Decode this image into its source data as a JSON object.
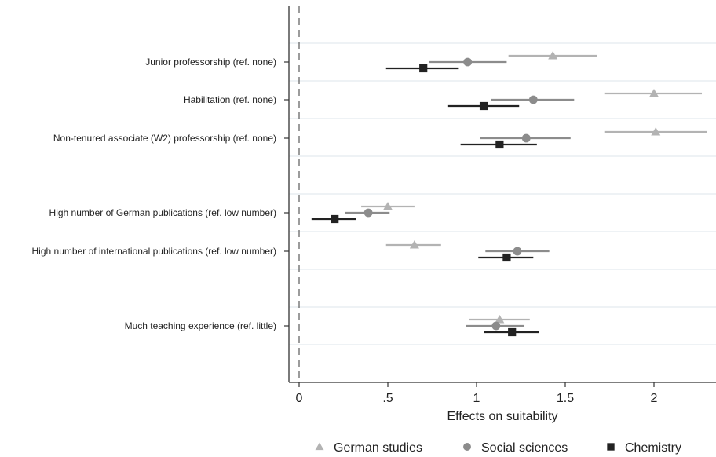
{
  "chart_data": {
    "type": "scatter",
    "title": "",
    "xlabel": "Effects on suitability",
    "ylabel": "",
    "xlim": [
      -0.03,
      2.3
    ],
    "xticks": [
      {
        "value": 0,
        "label": "0"
      },
      {
        "value": 0.5,
        "label": ".5"
      },
      {
        "value": 1,
        "label": "1"
      },
      {
        "value": 1.5,
        "label": "1.5"
      },
      {
        "value": 2,
        "label": "2"
      }
    ],
    "reference_line": 0,
    "categories": [
      "Junior professorship (ref. none)",
      "Habilitation (ref. none)",
      "Non-tenured associate (W2) professorship (ref. none)",
      "High number of German publications (ref. low number)",
      "High number of international publications (ref. low number)",
      "Much teaching experience (ref. little)"
    ],
    "series": [
      {
        "name": "German studies",
        "marker": "triangle",
        "color": "#b3b3b3",
        "points": [
          {
            "estimate": 1.43,
            "ci": [
              1.18,
              1.68
            ]
          },
          {
            "estimate": 2.0,
            "ci": [
              1.72,
              2.27
            ]
          },
          {
            "estimate": 2.01,
            "ci": [
              1.72,
              2.3
            ]
          },
          {
            "estimate": 0.5,
            "ci": [
              0.35,
              0.65
            ]
          },
          {
            "estimate": 0.65,
            "ci": [
              0.49,
              0.8
            ]
          },
          {
            "estimate": 1.13,
            "ci": [
              0.96,
              1.3
            ]
          }
        ]
      },
      {
        "name": "Social sciences",
        "marker": "circle",
        "color": "#8c8c8c",
        "points": [
          {
            "estimate": 0.95,
            "ci": [
              0.73,
              1.17
            ]
          },
          {
            "estimate": 1.32,
            "ci": [
              1.08,
              1.55
            ]
          },
          {
            "estimate": 1.28,
            "ci": [
              1.02,
              1.53
            ]
          },
          {
            "estimate": 0.39,
            "ci": [
              0.26,
              0.51
            ]
          },
          {
            "estimate": 1.23,
            "ci": [
              1.05,
              1.41
            ]
          },
          {
            "estimate": 1.11,
            "ci": [
              0.94,
              1.27
            ]
          }
        ]
      },
      {
        "name": "Chemistry",
        "marker": "square",
        "color": "#222222",
        "points": [
          {
            "estimate": 0.7,
            "ci": [
              0.49,
              0.9
            ]
          },
          {
            "estimate": 1.04,
            "ci": [
              0.84,
              1.24
            ]
          },
          {
            "estimate": 1.13,
            "ci": [
              0.91,
              1.34
            ]
          },
          {
            "estimate": 0.2,
            "ci": [
              0.07,
              0.32
            ]
          },
          {
            "estimate": 1.17,
            "ci": [
              1.01,
              1.32
            ]
          },
          {
            "estimate": 1.2,
            "ci": [
              1.04,
              1.35
            ]
          }
        ]
      }
    ],
    "grid": true,
    "legend": "bottom"
  }
}
